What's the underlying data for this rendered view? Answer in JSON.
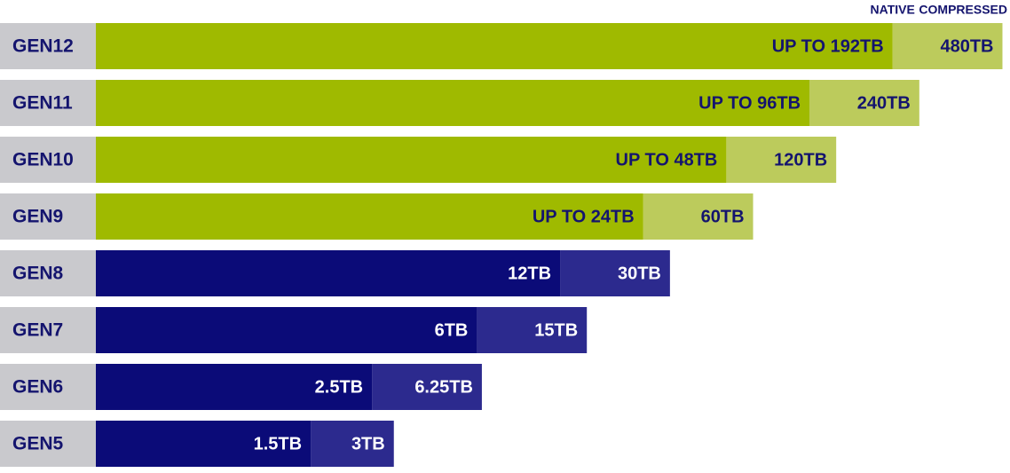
{
  "chart_data": {
    "type": "bar",
    "orientation": "horizontal",
    "categories": [
      "GEN12",
      "GEN11",
      "GEN10",
      "GEN9",
      "GEN8",
      "GEN7",
      "GEN6",
      "GEN5"
    ],
    "log_scale": true,
    "xlim": [
      0.25,
      500
    ],
    "series": [
      {
        "name": "NATIVE",
        "color": [
          "#9fba00",
          "#9fba00",
          "#9fba00",
          "#9fba00",
          "#0b0b78",
          "#0b0b78",
          "#0b0b78",
          "#0b0b78"
        ],
        "values": [
          192,
          96,
          48,
          24,
          12,
          6,
          2.5,
          1.5
        ],
        "value_labels": [
          "UP TO 192TB",
          "UP TO 96TB",
          "UP TO 48TB",
          "UP TO 24TB",
          "12TB",
          "6TB",
          "2.5TB",
          "1.5TB"
        ]
      },
      {
        "name": "COMPRESSED",
        "color": [
          "#bccb5c",
          "#bccb5c",
          "#bccb5c",
          "#bccb5c",
          "#2c2a8e",
          "#2c2a8e",
          "#2c2a8e",
          "#2c2a8e"
        ],
        "values": [
          480,
          240,
          120,
          60,
          30,
          15,
          6.25,
          3
        ],
        "value_labels": [
          "480TB",
          "240TB",
          "120TB",
          "60TB",
          "30TB",
          "15TB",
          "6.25TB",
          "3TB"
        ]
      }
    ]
  }
}
